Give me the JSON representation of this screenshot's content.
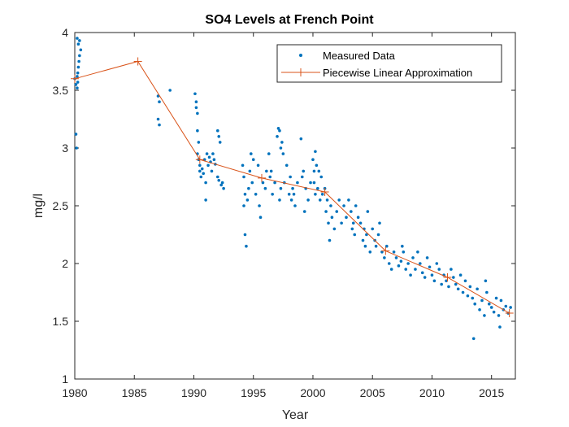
{
  "chart_data": {
    "type": "scatter",
    "title": "SO4 Levels at French Point",
    "xlabel": "Year",
    "ylabel": "mg/l",
    "xlim": [
      1980,
      2017
    ],
    "ylim": [
      1,
      4
    ],
    "xticks": [
      1980,
      1985,
      1990,
      1995,
      2000,
      2005,
      2010,
      2015
    ],
    "yticks": [
      1,
      1.5,
      2,
      2.5,
      3,
      3.5,
      4
    ],
    "ytick_labels": [
      "1",
      "1.5",
      "2",
      "2.5",
      "3",
      "3.5",
      "4"
    ],
    "grid": false,
    "legend_position": "top-right",
    "colors": {
      "measured": "#0072BD",
      "approximation": "#D95319",
      "axis": "#262626"
    },
    "series": [
      {
        "name": "Measured Data",
        "kind": "points",
        "x": [
          1980.0,
          1980.1,
          1980.2,
          1980.25,
          1980.3,
          1980.35,
          1980.4,
          1980.5,
          1980.1,
          1980.15,
          1980.2,
          1980.3,
          1980.4,
          1980.2,
          1980.25,
          1987.0,
          1987.0,
          1987.1,
          1987.1,
          1988.0,
          1990.1,
          1990.2,
          1990.2,
          1990.3,
          1990.3,
          1990.4,
          1990.3,
          1990.4,
          1990.5,
          1990.5,
          1990.6,
          1990.7,
          1990.8,
          1990.9,
          1991.0,
          1991.1,
          1991.2,
          1991.3,
          1991.4,
          1991.5,
          1991.6,
          1991.7,
          1991.8,
          1992.0,
          1992.1,
          1992.2,
          1992.0,
          1992.1,
          1992.3,
          1992.4,
          1992.5,
          1991.0,
          1994.1,
          1994.2,
          1994.3,
          1994.2,
          1994.3,
          1994.4,
          1994.5,
          1994.6,
          1994.7,
          1994.8,
          1994.9,
          1995.0,
          1995.2,
          1995.4,
          1995.5,
          1995.6,
          1995.8,
          1996.0,
          1996.1,
          1996.3,
          1996.4,
          1996.6,
          1996.5,
          1996.8,
          1997.0,
          1997.1,
          1997.2,
          1997.3,
          1997.4,
          1997.5,
          1997.3,
          1997.2,
          1997.6,
          1997.8,
          1998.0,
          1998.1,
          1998.3,
          1998.5,
          1998.7,
          1998.2,
          1998.4,
          1999.0,
          1999.2,
          1999.4,
          1999.6,
          1999.8,
          1999.1,
          1999.3,
          2000.0,
          2000.1,
          2000.2,
          2000.3,
          2000.1,
          2000.2,
          2000.4,
          2000.5,
          2000.6,
          2000.7,
          2000.8,
          2001.0,
          2001.1,
          2001.2,
          2001.3,
          2001.4,
          2001.5,
          2001.6,
          2001.8,
          2002.0,
          2002.2,
          2002.4,
          2002.6,
          2002.8,
          2003.0,
          2003.2,
          2003.4,
          2003.6,
          2003.8,
          2003.3,
          2003.5,
          2004.0,
          2004.2,
          2004.3,
          2004.4,
          2004.5,
          2004.6,
          2004.8,
          2005.0,
          2005.2,
          2005.3,
          2005.5,
          2005.6,
          2005.8,
          2006.0,
          2006.2,
          2006.4,
          2006.6,
          2006.8,
          2007.0,
          2007.2,
          2007.4,
          2007.5,
          2007.6,
          2007.8,
          2008.0,
          2008.2,
          2008.4,
          2008.6,
          2008.8,
          2009.0,
          2009.2,
          2009.4,
          2009.6,
          2009.8,
          2010.0,
          2010.2,
          2010.4,
          2010.6,
          2010.8,
          2011.0,
          2011.2,
          2011.4,
          2011.6,
          2011.8,
          2012.0,
          2012.2,
          2012.4,
          2012.6,
          2012.8,
          2013.0,
          2013.2,
          2013.4,
          2013.6,
          2013.8,
          2014.0,
          2014.2,
          2014.4,
          2014.6,
          2014.8,
          2015.0,
          2015.2,
          2015.4,
          2015.6,
          2015.8,
          2016.0,
          2016.2,
          2016.4,
          2016.6,
          2013.5,
          2014.5,
          2015.7
        ],
        "y": [
          3.6,
          3.55,
          3.62,
          3.65,
          3.7,
          3.75,
          3.8,
          3.85,
          3.12,
          3.0,
          3.95,
          3.9,
          3.93,
          3.52,
          3.57,
          3.45,
          3.25,
          3.2,
          3.4,
          3.5,
          3.47,
          3.4,
          3.35,
          3.3,
          3.15,
          3.05,
          2.95,
          2.9,
          2.85,
          2.8,
          2.75,
          2.82,
          2.78,
          2.9,
          2.7,
          2.95,
          2.85,
          2.92,
          2.88,
          2.8,
          2.95,
          2.9,
          2.86,
          3.15,
          3.1,
          3.05,
          2.75,
          2.72,
          2.68,
          2.7,
          2.65,
          2.55,
          2.85,
          2.75,
          2.6,
          2.5,
          2.25,
          2.15,
          2.55,
          2.65,
          2.8,
          2.95,
          2.7,
          2.9,
          2.6,
          2.85,
          2.5,
          2.4,
          2.7,
          2.65,
          2.8,
          2.95,
          2.75,
          2.6,
          2.8,
          2.7,
          3.1,
          3.17,
          3.15,
          3.0,
          3.05,
          2.95,
          2.65,
          2.55,
          2.7,
          2.85,
          2.6,
          2.75,
          2.65,
          2.5,
          2.7,
          2.55,
          2.6,
          3.08,
          2.8,
          2.65,
          2.55,
          2.7,
          2.75,
          2.45,
          2.9,
          2.8,
          2.97,
          2.85,
          2.7,
          2.6,
          2.65,
          2.8,
          2.55,
          2.75,
          2.6,
          2.65,
          2.45,
          2.55,
          2.35,
          2.2,
          2.5,
          2.4,
          2.3,
          2.45,
          2.55,
          2.35,
          2.5,
          2.4,
          2.55,
          2.45,
          2.35,
          2.5,
          2.4,
          2.3,
          2.25,
          2.35,
          2.2,
          2.3,
          2.15,
          2.25,
          2.45,
          2.1,
          2.3,
          2.2,
          2.15,
          2.25,
          2.35,
          2.1,
          2.05,
          2.15,
          2.0,
          1.95,
          2.1,
          2.05,
          1.98,
          2.02,
          2.15,
          2.1,
          1.95,
          2.0,
          1.9,
          2.05,
          1.95,
          2.1,
          2.0,
          1.92,
          1.88,
          2.05,
          1.97,
          1.9,
          1.85,
          2.0,
          1.95,
          1.82,
          1.9,
          1.85,
          1.8,
          1.95,
          1.88,
          1.82,
          1.78,
          1.9,
          1.75,
          1.85,
          1.72,
          1.8,
          1.7,
          1.65,
          1.78,
          1.6,
          1.68,
          1.55,
          1.75,
          1.65,
          1.62,
          1.58,
          1.7,
          1.55,
          1.68,
          1.6,
          1.63,
          1.57,
          1.62,
          1.35,
          1.85,
          1.45
        ]
      },
      {
        "name": "Piecewise Linear Approximation",
        "kind": "line",
        "x": [
          1980.0,
          1985.3,
          1990.5,
          1995.7,
          2001.0,
          2006.1,
          2011.3,
          2016.5
        ],
        "y": [
          3.6,
          3.75,
          2.9,
          2.74,
          2.62,
          2.11,
          1.88,
          1.57
        ]
      }
    ]
  }
}
